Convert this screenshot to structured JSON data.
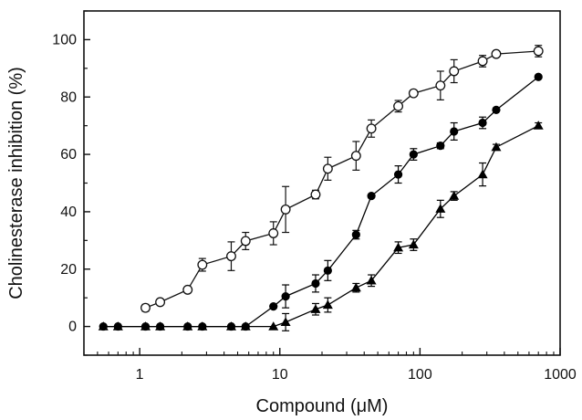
{
  "chart_data": {
    "type": "scatter",
    "xlabel": "Compound (μM)",
    "ylabel": "Cholinesterase inhibition (%)",
    "xscale": "log",
    "xlim": [
      0.4,
      1000
    ],
    "ylim": [
      -10,
      110
    ],
    "x_ticks": [
      1,
      10,
      100,
      1000
    ],
    "x_tick_labels": [
      "1",
      "10",
      "100",
      "1000"
    ],
    "y_ticks": [
      0,
      20,
      40,
      60,
      80,
      100
    ],
    "y_tick_labels": [
      "0",
      "20",
      "40",
      "60",
      "80",
      "100"
    ],
    "grid": false,
    "series": [
      {
        "marker": "open-circle",
        "color": "#111111",
        "points": [
          {
            "x": 1.1,
            "y": 6.5,
            "err": 1.2
          },
          {
            "x": 1.4,
            "y": 8.5,
            "err": 1
          },
          {
            "x": 2.2,
            "y": 12.8,
            "err": 1
          },
          {
            "x": 2.8,
            "y": 21.5,
            "err": 2.2
          },
          {
            "x": 4.5,
            "y": 24.5,
            "err": 5
          },
          {
            "x": 5.7,
            "y": 29.8,
            "err": 3
          },
          {
            "x": 9,
            "y": 32.5,
            "err": 4
          },
          {
            "x": 11,
            "y": 40.8,
            "err": 8
          },
          {
            "x": 18,
            "y": 46,
            "err": 1.5
          },
          {
            "x": 22,
            "y": 55,
            "err": 4
          },
          {
            "x": 35,
            "y": 59.5,
            "err": 5
          },
          {
            "x": 45,
            "y": 69,
            "err": 3
          },
          {
            "x": 70,
            "y": 76.8,
            "err": 2
          },
          {
            "x": 90,
            "y": 81.3,
            "err": 1
          },
          {
            "x": 140,
            "y": 84,
            "err": 5
          },
          {
            "x": 175,
            "y": 89,
            "err": 4
          },
          {
            "x": 280,
            "y": 92.5,
            "err": 2
          },
          {
            "x": 350,
            "y": 95,
            "err": 1
          },
          {
            "x": 700,
            "y": 96,
            "err": 2
          }
        ]
      },
      {
        "marker": "filled-circle",
        "color": "#000000",
        "points": [
          {
            "x": 0.55,
            "y": 0,
            "err": 0
          },
          {
            "x": 0.7,
            "y": 0,
            "err": 0
          },
          {
            "x": 1.1,
            "y": 0,
            "err": 0
          },
          {
            "x": 1.4,
            "y": 0,
            "err": 0
          },
          {
            "x": 2.2,
            "y": 0,
            "err": 0
          },
          {
            "x": 2.8,
            "y": 0,
            "err": 0
          },
          {
            "x": 4.5,
            "y": 0,
            "err": 0
          },
          {
            "x": 5.7,
            "y": 0,
            "err": 0
          },
          {
            "x": 9,
            "y": 7,
            "err": 0
          },
          {
            "x": 11,
            "y": 10.5,
            "err": 4
          },
          {
            "x": 18,
            "y": 15,
            "err": 3
          },
          {
            "x": 22,
            "y": 19.5,
            "err": 3.5
          },
          {
            "x": 35,
            "y": 32,
            "err": 1.5
          },
          {
            "x": 45,
            "y": 45.5,
            "err": 0
          },
          {
            "x": 70,
            "y": 53,
            "err": 3
          },
          {
            "x": 90,
            "y": 60,
            "err": 2
          },
          {
            "x": 140,
            "y": 63,
            "err": 1
          },
          {
            "x": 175,
            "y": 68,
            "err": 3
          },
          {
            "x": 280,
            "y": 71,
            "err": 2
          },
          {
            "x": 350,
            "y": 75.5,
            "err": 0
          },
          {
            "x": 700,
            "y": 87,
            "err": 0
          }
        ]
      },
      {
        "marker": "filled-triangle",
        "color": "#000000",
        "points": [
          {
            "x": 0.55,
            "y": 0,
            "err": 0
          },
          {
            "x": 0.7,
            "y": 0,
            "err": 0
          },
          {
            "x": 1.1,
            "y": 0,
            "err": 0
          },
          {
            "x": 1.4,
            "y": 0,
            "err": 0
          },
          {
            "x": 2.2,
            "y": 0,
            "err": 0
          },
          {
            "x": 2.8,
            "y": 0,
            "err": 0
          },
          {
            "x": 4.5,
            "y": 0,
            "err": 0
          },
          {
            "x": 5.7,
            "y": 0,
            "err": 0
          },
          {
            "x": 9,
            "y": 0,
            "err": 0
          },
          {
            "x": 11,
            "y": 1.5,
            "err": 3
          },
          {
            "x": 18,
            "y": 6,
            "err": 2
          },
          {
            "x": 22,
            "y": 7.5,
            "err": 2.5
          },
          {
            "x": 35,
            "y": 13.5,
            "err": 1.5
          },
          {
            "x": 45,
            "y": 16,
            "err": 2
          },
          {
            "x": 70,
            "y": 27.5,
            "err": 2
          },
          {
            "x": 90,
            "y": 28.5,
            "err": 2
          },
          {
            "x": 140,
            "y": 41,
            "err": 3
          },
          {
            "x": 175,
            "y": 45.5,
            "err": 1.5
          },
          {
            "x": 280,
            "y": 53,
            "err": 4
          },
          {
            "x": 350,
            "y": 62.5,
            "err": 1
          },
          {
            "x": 700,
            "y": 70,
            "err": 1
          }
        ]
      }
    ]
  }
}
